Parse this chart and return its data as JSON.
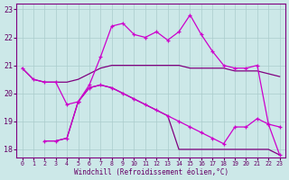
{
  "xlabel": "Windchill (Refroidissement éolien,°C)",
  "background_color": "#cce8e8",
  "line_color_dark": "#800080",
  "line_color_bright": "#cc00cc",
  "xmin": 0,
  "xmax": 23,
  "ymin": 18,
  "ymax": 23,
  "yticks": [
    18,
    19,
    20,
    21,
    22,
    23
  ],
  "xticks": [
    0,
    1,
    2,
    3,
    4,
    5,
    6,
    7,
    8,
    9,
    10,
    11,
    12,
    13,
    14,
    15,
    16,
    17,
    18,
    19,
    20,
    21,
    22,
    23
  ],
  "s1_x": [
    0,
    1,
    2,
    3,
    4,
    5,
    6,
    7,
    8,
    9,
    10,
    11,
    12,
    13,
    14,
    15,
    16,
    17,
    18,
    19,
    20,
    21,
    22,
    23
  ],
  "s1_y": [
    20.9,
    20.5,
    20.4,
    20.4,
    20.4,
    20.5,
    20.7,
    20.9,
    21.0,
    21.0,
    21.0,
    21.0,
    21.0,
    21.0,
    21.0,
    20.9,
    20.9,
    20.9,
    20.9,
    20.8,
    20.8,
    20.8,
    20.7,
    20.6
  ],
  "s2_x": [
    0,
    1,
    2,
    3,
    4,
    5,
    6,
    7,
    8,
    9,
    10,
    11,
    12,
    13,
    14,
    15,
    16,
    17,
    18,
    19,
    20,
    21,
    22,
    23
  ],
  "s2_y": [
    20.9,
    20.5,
    20.4,
    20.4,
    19.6,
    19.7,
    20.3,
    21.3,
    22.4,
    22.5,
    22.1,
    22.0,
    22.2,
    21.9,
    22.2,
    22.8,
    22.1,
    21.5,
    21.0,
    20.9,
    20.9,
    21.0,
    18.9,
    18.8
  ],
  "s3_x": [
    2,
    3,
    4,
    5,
    6,
    7,
    8,
    9,
    10,
    11,
    12,
    13,
    14,
    15,
    16,
    17,
    18,
    19,
    20,
    21,
    22,
    23
  ],
  "s3_y": [
    18.3,
    18.3,
    18.4,
    19.7,
    20.2,
    20.3,
    20.2,
    20.0,
    19.8,
    19.6,
    19.4,
    19.2,
    19.0,
    18.8,
    18.6,
    18.4,
    18.2,
    18.8,
    18.8,
    19.1,
    18.9,
    17.8
  ],
  "s4_x": [
    2,
    3,
    4,
    5,
    6,
    7,
    8,
    9,
    10,
    11,
    12,
    13,
    14,
    15,
    16,
    17,
    18,
    19,
    20,
    21,
    22,
    23
  ],
  "s4_y": [
    18.3,
    18.3,
    18.4,
    19.7,
    20.2,
    20.3,
    20.2,
    20.0,
    19.8,
    19.6,
    19.4,
    19.2,
    18.0,
    18.0,
    18.0,
    18.0,
    18.0,
    18.0,
    18.0,
    18.0,
    18.0,
    17.8
  ]
}
